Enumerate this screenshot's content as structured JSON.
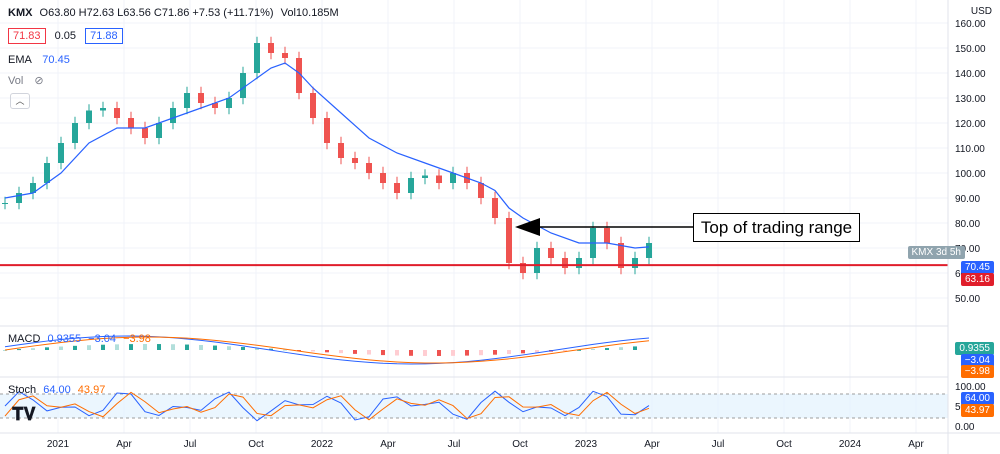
{
  "header": {
    "symbol": "KMX",
    "ohlc": "O63.80 H72.63 L63.56 C71.86 +7.53 (+11.71%)",
    "volume": "Vol10.185M",
    "sell_price": "71.83",
    "spread": "0.05",
    "buy_price": "71.88"
  },
  "indicators": {
    "ema_label": "EMA",
    "ema_value": "70.45",
    "vol_label": "Vol",
    "macd_label": "MACD",
    "macd_values": [
      "0.9355",
      "−3.04",
      "−3.98"
    ],
    "stoch_label": "Stoch",
    "stoch_values": [
      "64.00",
      "43.97"
    ]
  },
  "annotation": "Top of trading range",
  "currency": "USD",
  "price_tags": {
    "kmx_label": "KMX",
    "kmx_time": "3d 5h",
    "ema": "70.45",
    "support": "63.16",
    "macd": [
      "0.9355",
      "−3.04",
      "−3.98"
    ],
    "stoch": [
      "64.00",
      "43.97"
    ]
  },
  "colors": {
    "up": "#26a69a",
    "down": "#ef5350",
    "ema": "#2962ff",
    "support": "#e01e2b",
    "signal": "#ff6d00",
    "stoch_k": "#2962ff",
    "stoch_d": "#ff6d00"
  },
  "chart_data": {
    "type": "candlestick",
    "series": [
      {
        "name": "KMX"
      },
      {
        "name": "EMA",
        "values_note": "EMA 70.45"
      }
    ],
    "ylim": [
      40,
      160
    ],
    "y_ticks": [
      "50.00",
      "60.00",
      "70.00",
      "80.00",
      "90.00",
      "100.00",
      "110.00",
      "120.00",
      "130.00",
      "140.00",
      "150.00",
      "160.00"
    ],
    "x_ticks": [
      "2021",
      "Apr",
      "Jul",
      "Oct",
      "2022",
      "Apr",
      "Jul",
      "Oct",
      "2023",
      "Apr",
      "Jul",
      "Oct",
      "2024",
      "Apr"
    ],
    "support_level": 63.16,
    "prices": [
      [
        0.0,
        88
      ],
      [
        1.0,
        92
      ],
      [
        2.0,
        96
      ],
      [
        3.0,
        104
      ],
      [
        4.0,
        112
      ],
      [
        5.0,
        120
      ],
      [
        6.0,
        125
      ],
      [
        7.0,
        126
      ],
      [
        8.0,
        122
      ],
      [
        9.0,
        118
      ],
      [
        10.0,
        114
      ],
      [
        11.0,
        120
      ],
      [
        12.0,
        126
      ],
      [
        13.0,
        132
      ],
      [
        14.0,
        128
      ],
      [
        15.0,
        126
      ],
      [
        16.0,
        130
      ],
      [
        17.0,
        140
      ],
      [
        18.0,
        152
      ],
      [
        19.0,
        148
      ],
      [
        20.0,
        146
      ],
      [
        21.0,
        132
      ],
      [
        22.0,
        122
      ],
      [
        23.0,
        112
      ],
      [
        24.0,
        106
      ],
      [
        25.0,
        104
      ],
      [
        26.0,
        100
      ],
      [
        27.0,
        96
      ],
      [
        28.0,
        92
      ],
      [
        29.0,
        98
      ],
      [
        30.0,
        99
      ],
      [
        31.0,
        96
      ],
      [
        32.0,
        100
      ],
      [
        33.0,
        96
      ],
      [
        34.0,
        90
      ],
      [
        35.0,
        82
      ],
      [
        36.0,
        64
      ],
      [
        37.0,
        60
      ],
      [
        38.0,
        70
      ],
      [
        39.0,
        66
      ],
      [
        40.0,
        62
      ],
      [
        41.0,
        66
      ],
      [
        42.0,
        78
      ],
      [
        43.0,
        72
      ],
      [
        44.0,
        62
      ],
      [
        45.0,
        66
      ],
      [
        46.0,
        72
      ]
    ],
    "ema": [
      [
        0.0,
        90
      ],
      [
        2.0,
        92
      ],
      [
        4.0,
        100
      ],
      [
        6.0,
        112
      ],
      [
        8.0,
        118
      ],
      [
        10.0,
        118
      ],
      [
        12.0,
        122
      ],
      [
        14.0,
        126
      ],
      [
        16.0,
        130
      ],
      [
        18.0,
        138
      ],
      [
        19.0,
        142
      ],
      [
        20.0,
        144
      ],
      [
        21.0,
        140
      ],
      [
        22.0,
        134
      ],
      [
        24.0,
        124
      ],
      [
        26.0,
        114
      ],
      [
        28.0,
        108
      ],
      [
        30.0,
        104
      ],
      [
        32.0,
        100
      ],
      [
        34.0,
        96
      ],
      [
        35.0,
        93
      ],
      [
        36.0,
        86
      ],
      [
        37.0,
        82
      ],
      [
        39.0,
        76
      ],
      [
        41.0,
        72
      ],
      [
        43.0,
        72
      ],
      [
        44.0,
        71
      ],
      [
        45.0,
        70
      ],
      [
        46.0,
        70.45
      ]
    ],
    "macd": {
      "values": [
        "0.9355",
        "−3.04",
        "−3.98"
      ]
    },
    "stoch": {
      "k": 64.0,
      "d": 43.97,
      "bands": [
        20,
        80
      ],
      "ylim": [
        0,
        100
      ],
      "y_ticks": [
        "0.00",
        "50.00",
        "100.00"
      ]
    }
  }
}
